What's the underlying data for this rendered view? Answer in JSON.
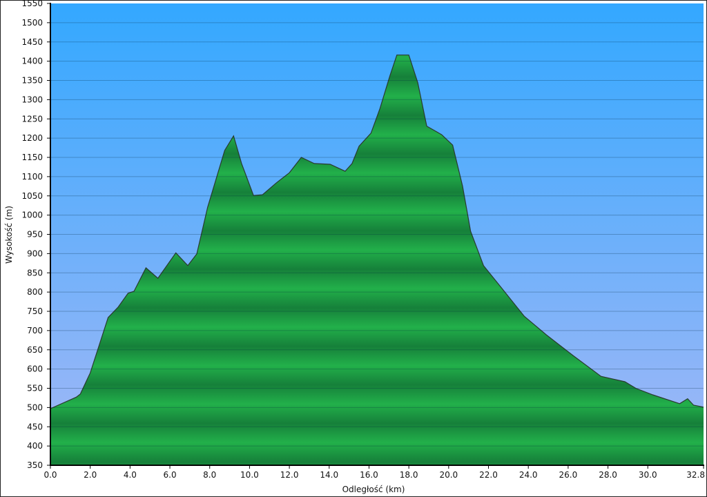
{
  "chart_data": {
    "type": "area",
    "xlabel": "Odległość   (km)",
    "ylabel": "Wysokość (m)",
    "xlim": [
      0,
      32.8
    ],
    "ylim": [
      350,
      1550
    ],
    "x_ticks": [
      "0.0",
      "2.0",
      "4.0",
      "6.0",
      "8.0",
      "10.0",
      "12.0",
      "14.0",
      "16.0",
      "18.0",
      "20.0",
      "22.0",
      "24.0",
      "26.0",
      "28.0",
      "30.0",
      "32.8"
    ],
    "y_ticks": [
      "350",
      "400",
      "450",
      "500",
      "550",
      "600",
      "650",
      "700",
      "750",
      "800",
      "850",
      "900",
      "950",
      "1000",
      "1050",
      "1100",
      "1150",
      "1200",
      "1250",
      "1300",
      "1350",
      "1400",
      "1450",
      "1500",
      "1550"
    ],
    "grid": true,
    "colors": {
      "sky_top": "#33a8ff",
      "sky_bottom": "#a4b8f6",
      "fill_light": "#22b04a",
      "fill_dark": "#16803a",
      "outline": "#2a3a30"
    },
    "x": [
      0,
      1.3,
      1.5,
      2.0,
      2.9,
      3.4,
      3.9,
      4.2,
      4.8,
      5.4,
      6.3,
      6.9,
      7.35,
      7.9,
      8.75,
      9.2,
      9.6,
      10.2,
      10.65,
      11.35,
      12.0,
      12.6,
      13.25,
      14.05,
      14.8,
      15.15,
      15.5,
      16.1,
      16.55,
      17.05,
      17.4,
      18.0,
      18.45,
      18.9,
      19.65,
      20.2,
      20.7,
      21.1,
      21.75,
      22.45,
      23.8,
      24.9,
      26.25,
      27.65,
      28.85,
      29.4,
      30.25,
      31.6,
      32.0,
      32.3,
      32.8
    ],
    "y": [
      497,
      527,
      535,
      590,
      734,
      761,
      797,
      802,
      863,
      836,
      902,
      869,
      899,
      1021,
      1168,
      1206,
      1134,
      1051,
      1053,
      1084,
      1110,
      1150,
      1134,
      1132,
      1114,
      1134,
      1179,
      1213,
      1277,
      1362,
      1416,
      1416,
      1344,
      1231,
      1209,
      1182,
      1075,
      958,
      869,
      824,
      737,
      689,
      635,
      581,
      567,
      550,
      533,
      510,
      523,
      506,
      501
    ]
  }
}
